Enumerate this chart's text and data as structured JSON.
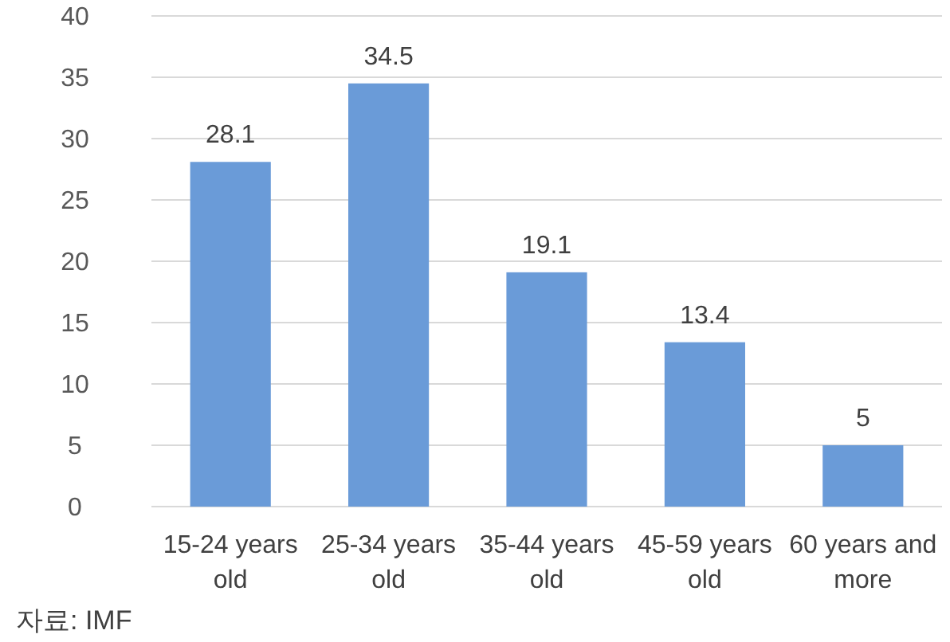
{
  "chart_data": {
    "type": "bar",
    "categories": [
      "15-24 years old",
      "25-34 years old",
      "35-44 years old",
      "45-59 years old",
      "60 years and more"
    ],
    "values": [
      28.1,
      34.5,
      19.1,
      13.4,
      5
    ],
    "color": "#6a9bd8",
    "ylim": [
      0,
      40
    ],
    "yticks": [
      0,
      5,
      10,
      15,
      20,
      25,
      30,
      35,
      40
    ],
    "grid": "y",
    "data_labels": true,
    "annotations": [
      "자료: IMF"
    ]
  }
}
